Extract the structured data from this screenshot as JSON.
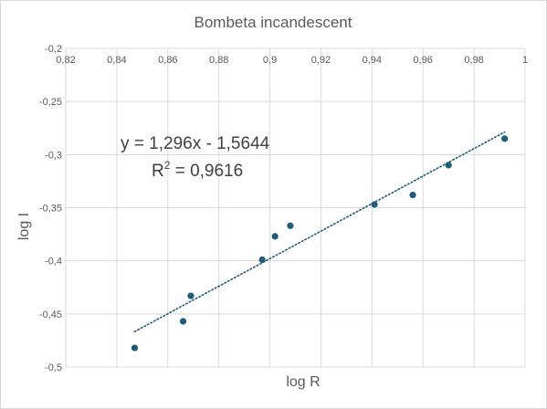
{
  "chart_data": {
    "type": "scatter",
    "title": "Bombeta incandescent",
    "xlabel": "log R",
    "ylabel": "log I",
    "xlim": [
      0.82,
      1.0
    ],
    "ylim": [
      -0.5,
      -0.2
    ],
    "x_ticks": [
      "0,82",
      "0,84",
      "0,86",
      "0,88",
      "0,9",
      "0,92",
      "0,94",
      "0,96",
      "0,98",
      "1"
    ],
    "y_ticks": [
      "-0,2",
      "-0,25",
      "-0,3",
      "-0,35",
      "-0,4",
      "-0,45",
      "-0,5"
    ],
    "x_tick_values": [
      0.82,
      0.84,
      0.86,
      0.88,
      0.9,
      0.92,
      0.94,
      0.96,
      0.98,
      1.0
    ],
    "y_tick_values": [
      -0.2,
      -0.25,
      -0.3,
      -0.35,
      -0.4,
      -0.45,
      -0.5
    ],
    "grid": true,
    "points": [
      {
        "x": 0.847,
        "y": -0.482
      },
      {
        "x": 0.866,
        "y": -0.457
      },
      {
        "x": 0.869,
        "y": -0.433
      },
      {
        "x": 0.897,
        "y": -0.399
      },
      {
        "x": 0.902,
        "y": -0.377
      },
      {
        "x": 0.908,
        "y": -0.367
      },
      {
        "x": 0.941,
        "y": -0.347
      },
      {
        "x": 0.956,
        "y": -0.338
      },
      {
        "x": 0.97,
        "y": -0.31
      },
      {
        "x": 0.992,
        "y": -0.285
      }
    ],
    "trendline": {
      "type": "linear",
      "slope": 1.296,
      "intercept": -1.5644,
      "x_range": [
        0.847,
        0.992
      ],
      "equation": "y = 1,296x - 1,5644",
      "r_squared_prefix": "R",
      "r_squared_sup": "2",
      "r_squared_value": " = 0,9616"
    },
    "colors": {
      "marker": "#1f5c7a",
      "trendline": "#1f5c7a",
      "grid": "#d9d9d9",
      "text": "#595959"
    }
  }
}
